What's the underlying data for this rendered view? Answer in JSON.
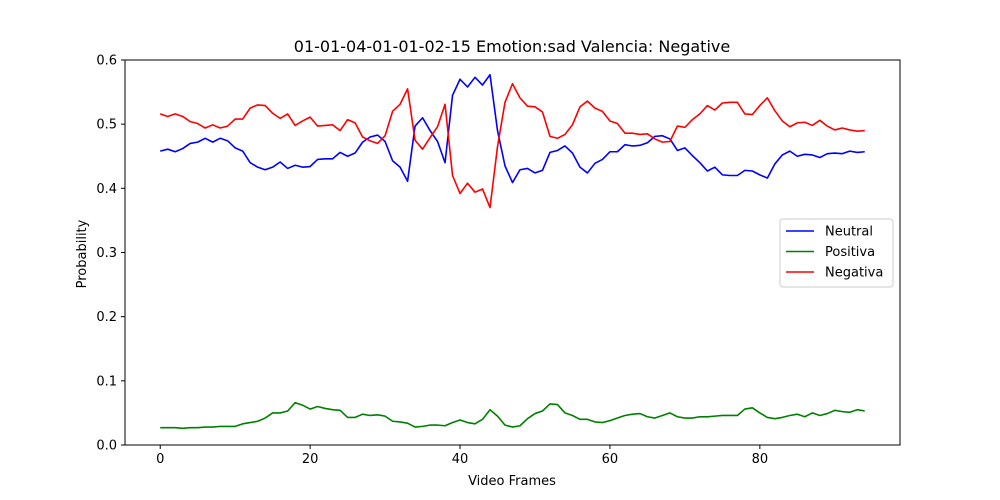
{
  "chart_data": {
    "type": "line",
    "title": "01-01-04-01-01-02-15 Emotion:sad Valencia: Negative",
    "xlabel": "Video Frames",
    "ylabel": "Probability",
    "xlim": [
      -4.7,
      98.7
    ],
    "ylim": [
      0.0,
      0.6
    ],
    "xticks": [
      0,
      20,
      40,
      60,
      80
    ],
    "yticks": [
      0.0,
      0.1,
      0.2,
      0.3,
      0.4,
      0.5,
      0.6
    ],
    "xtick_labels": [
      "0",
      "20",
      "40",
      "60",
      "80"
    ],
    "ytick_labels": [
      "0.0",
      "0.1",
      "0.2",
      "0.3",
      "0.4",
      "0.5",
      "0.6"
    ],
    "grid": false,
    "legend_position": "center-right",
    "x": [
      0,
      1,
      2,
      3,
      4,
      5,
      6,
      7,
      8,
      9,
      10,
      11,
      12,
      13,
      14,
      15,
      16,
      17,
      18,
      19,
      20,
      21,
      22,
      23,
      24,
      25,
      26,
      27,
      28,
      29,
      30,
      31,
      32,
      33,
      34,
      35,
      36,
      37,
      38,
      39,
      40,
      41,
      42,
      43,
      44,
      45,
      46,
      47,
      48,
      49,
      50,
      51,
      52,
      53,
      54,
      55,
      56,
      57,
      58,
      59,
      60,
      61,
      62,
      63,
      64,
      65,
      66,
      67,
      68,
      69,
      70,
      71,
      72,
      73,
      74,
      75,
      76,
      77,
      78,
      79,
      80,
      81,
      82,
      83,
      84,
      85,
      86,
      87,
      88,
      89,
      90,
      91,
      92,
      93,
      94
    ],
    "series": [
      {
        "name": "Neutral",
        "color": "#0000ff",
        "values": [
          0.458,
          0.461,
          0.457,
          0.462,
          0.47,
          0.472,
          0.478,
          0.472,
          0.478,
          0.474,
          0.463,
          0.458,
          0.44,
          0.433,
          0.429,
          0.433,
          0.441,
          0.431,
          0.436,
          0.433,
          0.434,
          0.445,
          0.446,
          0.446,
          0.456,
          0.45,
          0.455,
          0.472,
          0.48,
          0.483,
          0.473,
          0.443,
          0.433,
          0.411,
          0.497,
          0.51,
          0.49,
          0.473,
          0.44,
          0.545,
          0.57,
          0.558,
          0.573,
          0.561,
          0.577,
          0.49,
          0.435,
          0.409,
          0.429,
          0.431,
          0.424,
          0.428,
          0.456,
          0.459,
          0.466,
          0.455,
          0.433,
          0.424,
          0.439,
          0.445,
          0.457,
          0.457,
          0.468,
          0.466,
          0.467,
          0.471,
          0.481,
          0.482,
          0.477,
          0.459,
          0.463,
          0.451,
          0.44,
          0.427,
          0.433,
          0.421,
          0.42,
          0.42,
          0.428,
          0.427,
          0.421,
          0.416,
          0.438,
          0.452,
          0.458,
          0.45,
          0.453,
          0.452,
          0.448,
          0.454,
          0.455,
          0.454,
          0.458,
          0.456,
          0.457
        ]
      },
      {
        "name": "Positiva",
        "color": "#008000",
        "values": [
          0.027,
          0.027,
          0.027,
          0.026,
          0.027,
          0.027,
          0.028,
          0.028,
          0.029,
          0.029,
          0.029,
          0.033,
          0.035,
          0.037,
          0.042,
          0.05,
          0.05,
          0.053,
          0.066,
          0.062,
          0.056,
          0.06,
          0.057,
          0.055,
          0.054,
          0.043,
          0.043,
          0.048,
          0.046,
          0.047,
          0.045,
          0.037,
          0.036,
          0.034,
          0.028,
          0.029,
          0.031,
          0.031,
          0.03,
          0.035,
          0.039,
          0.035,
          0.033,
          0.04,
          0.055,
          0.045,
          0.031,
          0.028,
          0.03,
          0.041,
          0.049,
          0.053,
          0.064,
          0.063,
          0.05,
          0.046,
          0.04,
          0.04,
          0.036,
          0.035,
          0.038,
          0.042,
          0.046,
          0.048,
          0.049,
          0.044,
          0.042,
          0.046,
          0.05,
          0.044,
          0.042,
          0.042,
          0.044,
          0.044,
          0.045,
          0.046,
          0.046,
          0.046,
          0.056,
          0.058,
          0.05,
          0.043,
          0.041,
          0.043,
          0.046,
          0.048,
          0.044,
          0.05,
          0.046,
          0.049,
          0.054,
          0.052,
          0.051,
          0.055,
          0.053
        ]
      },
      {
        "name": "Negativa",
        "color": "#ff0000",
        "values": [
          0.516,
          0.512,
          0.516,
          0.512,
          0.504,
          0.501,
          0.494,
          0.499,
          0.494,
          0.497,
          0.508,
          0.508,
          0.525,
          0.53,
          0.529,
          0.517,
          0.509,
          0.516,
          0.498,
          0.505,
          0.511,
          0.497,
          0.498,
          0.499,
          0.49,
          0.507,
          0.502,
          0.48,
          0.474,
          0.47,
          0.482,
          0.52,
          0.531,
          0.555,
          0.475,
          0.461,
          0.479,
          0.496,
          0.531,
          0.42,
          0.392,
          0.408,
          0.394,
          0.399,
          0.37,
          0.465,
          0.534,
          0.563,
          0.541,
          0.528,
          0.527,
          0.519,
          0.481,
          0.478,
          0.484,
          0.499,
          0.527,
          0.536,
          0.525,
          0.52,
          0.505,
          0.501,
          0.486,
          0.486,
          0.484,
          0.485,
          0.477,
          0.472,
          0.473,
          0.497,
          0.495,
          0.507,
          0.516,
          0.529,
          0.522,
          0.533,
          0.534,
          0.534,
          0.516,
          0.515,
          0.529,
          0.541,
          0.521,
          0.505,
          0.496,
          0.502,
          0.503,
          0.498,
          0.506,
          0.497,
          0.491,
          0.494,
          0.491,
          0.489,
          0.49
        ]
      }
    ]
  }
}
